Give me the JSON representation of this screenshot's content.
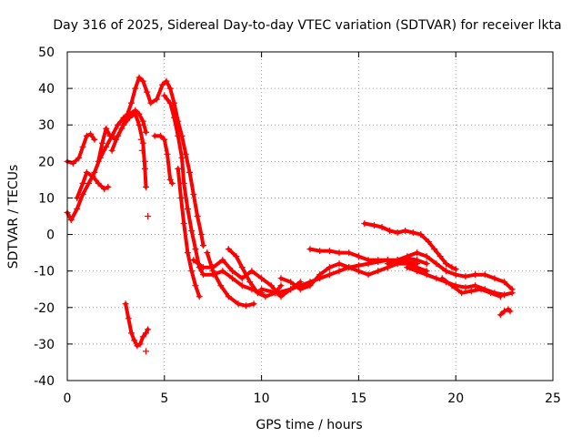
{
  "chart_data": {
    "type": "scatter",
    "title": "Day 316 of 2025, Sidereal Day-to-day VTEC variation (SDTVAR) for receiver lkta",
    "xlabel": "GPS time / hours",
    "ylabel": "SDTVAR / TECUs",
    "xlim": [
      0,
      25
    ],
    "ylim": [
      -40,
      50
    ],
    "xticks": [
      0,
      5,
      10,
      15,
      20,
      25
    ],
    "yticks": [
      -40,
      -30,
      -20,
      -10,
      0,
      10,
      20,
      30,
      40,
      50
    ],
    "grid": true,
    "marker": "+",
    "color": "#ff0000",
    "series": [
      {
        "name": "trace-1",
        "points": [
          [
            0.0,
            20
          ],
          [
            0.3,
            19.5
          ],
          [
            0.6,
            21
          ],
          [
            0.8,
            24
          ],
          [
            1.0,
            27
          ],
          [
            1.2,
            27.5
          ],
          [
            1.4,
            26
          ]
        ]
      },
      {
        "name": "trace-2",
        "points": [
          [
            0.0,
            6
          ],
          [
            0.2,
            4
          ],
          [
            0.5,
            7
          ],
          [
            0.8,
            11
          ],
          [
            1.1,
            14
          ],
          [
            1.4,
            17
          ],
          [
            1.7,
            21
          ],
          [
            2.0,
            24
          ],
          [
            2.3,
            27
          ],
          [
            2.6,
            30
          ],
          [
            2.9,
            32
          ],
          [
            3.2,
            33
          ],
          [
            3.5,
            34
          ],
          [
            3.7,
            33
          ],
          [
            3.9,
            31
          ],
          [
            4.05,
            28
          ]
        ]
      },
      {
        "name": "trace-3",
        "points": [
          [
            0.5,
            10
          ],
          [
            0.8,
            14
          ],
          [
            1.0,
            17
          ],
          [
            1.3,
            16
          ],
          [
            1.6,
            14
          ],
          [
            1.9,
            12.5
          ],
          [
            2.1,
            13
          ]
        ]
      },
      {
        "name": "trace-4",
        "points": [
          [
            1.6,
            20
          ],
          [
            1.8,
            25
          ],
          [
            2.0,
            29
          ],
          [
            2.2,
            27
          ],
          [
            2.5,
            26
          ],
          [
            2.8,
            29
          ],
          [
            3.1,
            33
          ],
          [
            3.3,
            36
          ],
          [
            3.5,
            40
          ],
          [
            3.7,
            43
          ],
          [
            3.9,
            42
          ],
          [
            4.1,
            39
          ],
          [
            4.3,
            36
          ],
          [
            4.6,
            37
          ],
          [
            4.9,
            41
          ],
          [
            5.1,
            42
          ],
          [
            5.3,
            40
          ],
          [
            5.5,
            36
          ],
          [
            5.7,
            31
          ],
          [
            5.9,
            27
          ],
          [
            6.1,
            22
          ],
          [
            6.3,
            17
          ],
          [
            6.5,
            11
          ],
          [
            6.7,
            5
          ],
          [
            6.9,
            0
          ],
          [
            7.0,
            -3
          ]
        ]
      },
      {
        "name": "trace-5",
        "points": [
          [
            2.3,
            23
          ],
          [
            2.6,
            27
          ],
          [
            2.9,
            30
          ],
          [
            3.2,
            32
          ],
          [
            3.5,
            33
          ],
          [
            3.7,
            30
          ],
          [
            3.9,
            25
          ],
          [
            4.0,
            18
          ],
          [
            4.05,
            13
          ]
        ]
      },
      {
        "name": "trace-6",
        "points": [
          [
            4.5,
            27
          ],
          [
            4.8,
            27
          ],
          [
            5.0,
            26
          ],
          [
            5.15,
            22
          ],
          [
            5.3,
            15
          ],
          [
            5.4,
            14
          ]
        ]
      },
      {
        "name": "trace-7",
        "points": [
          [
            5.0,
            38
          ],
          [
            5.3,
            36
          ],
          [
            5.5,
            32
          ],
          [
            5.7,
            27
          ],
          [
            5.9,
            21
          ],
          [
            6.0,
            14
          ],
          [
            6.2,
            7
          ],
          [
            6.4,
            1
          ],
          [
            6.6,
            -4
          ],
          [
            6.8,
            -9
          ],
          [
            7.0,
            -11
          ],
          [
            7.5,
            -11
          ],
          [
            8.0,
            -10
          ],
          [
            8.5,
            -12
          ],
          [
            9.0,
            -14
          ],
          [
            9.5,
            -15
          ],
          [
            10.0,
            -16
          ]
        ]
      },
      {
        "name": "trace-8",
        "points": [
          [
            5.7,
            18
          ],
          [
            5.85,
            10
          ],
          [
            6.0,
            3
          ],
          [
            6.2,
            -5
          ],
          [
            6.4,
            -10
          ],
          [
            6.6,
            -14
          ],
          [
            6.8,
            -17
          ]
        ]
      },
      {
        "name": "trace-9",
        "points": [
          [
            6.5,
            -7
          ],
          [
            7.0,
            -9
          ],
          [
            7.5,
            -9
          ],
          [
            8.0,
            -7
          ],
          [
            8.5,
            -10
          ],
          [
            9.0,
            -12
          ],
          [
            9.5,
            -10
          ],
          [
            10.0,
            -12
          ],
          [
            10.5,
            -14
          ],
          [
            11.0,
            -17
          ],
          [
            11.5,
            -15
          ],
          [
            12.0,
            -13
          ]
        ]
      },
      {
        "name": "trace-10",
        "points": [
          [
            7.2,
            -5
          ],
          [
            7.5,
            -10
          ],
          [
            7.9,
            -14
          ],
          [
            8.3,
            -17
          ],
          [
            8.8,
            -19
          ],
          [
            9.2,
            -19.5
          ],
          [
            9.6,
            -19
          ]
        ]
      },
      {
        "name": "trace-11",
        "points": [
          [
            8.3,
            -4
          ],
          [
            8.7,
            -6
          ],
          [
            9.0,
            -9
          ],
          [
            9.4,
            -13
          ],
          [
            9.8,
            -16
          ],
          [
            10.2,
            -17
          ],
          [
            10.7,
            -16
          ],
          [
            11.0,
            -14
          ]
        ]
      },
      {
        "name": "trace-12",
        "points": [
          [
            10.0,
            -15
          ],
          [
            10.8,
            -16
          ],
          [
            11.5,
            -15
          ],
          [
            12.0,
            -14
          ],
          [
            12.5,
            -13
          ],
          [
            13.0,
            -12
          ],
          [
            13.5,
            -11
          ],
          [
            14.0,
            -10
          ],
          [
            14.5,
            -9
          ],
          [
            15.0,
            -8.5
          ],
          [
            15.5,
            -8
          ],
          [
            16.0,
            -7.5
          ],
          [
            16.5,
            -7
          ],
          [
            17.0,
            -7
          ],
          [
            17.5,
            -6.5
          ],
          [
            18.0,
            -7
          ],
          [
            18.5,
            -8
          ]
        ]
      },
      {
        "name": "trace-13",
        "points": [
          [
            11.0,
            -12
          ],
          [
            11.5,
            -13
          ],
          [
            12.0,
            -15
          ],
          [
            12.5,
            -14
          ],
          [
            13.0,
            -11
          ],
          [
            13.5,
            -9
          ],
          [
            14.0,
            -8
          ],
          [
            14.5,
            -9
          ],
          [
            15.0,
            -10
          ],
          [
            15.5,
            -11
          ],
          [
            16.0,
            -10
          ],
          [
            16.5,
            -9
          ],
          [
            17.0,
            -8
          ],
          [
            17.5,
            -8
          ],
          [
            18.0,
            -9
          ],
          [
            18.5,
            -10
          ]
        ]
      },
      {
        "name": "trace-14",
        "points": [
          [
            12.5,
            -4
          ],
          [
            13.0,
            -4.5
          ],
          [
            13.5,
            -4.5
          ],
          [
            14.0,
            -5
          ],
          [
            14.5,
            -5
          ],
          [
            15.0,
            -6
          ],
          [
            15.5,
            -7
          ],
          [
            16.0,
            -7
          ],
          [
            16.5,
            -7
          ],
          [
            17.0,
            -7.5
          ],
          [
            17.5,
            -7.5
          ],
          [
            18.0,
            -8
          ]
        ]
      },
      {
        "name": "trace-15",
        "points": [
          [
            15.3,
            3
          ],
          [
            15.8,
            2.5
          ],
          [
            16.2,
            2
          ],
          [
            16.6,
            1
          ],
          [
            17.0,
            0.5
          ],
          [
            17.4,
            1
          ],
          [
            17.8,
            0.5
          ],
          [
            18.2,
            0
          ],
          [
            18.6,
            -2
          ],
          [
            18.9,
            -4
          ],
          [
            19.2,
            -6
          ],
          [
            19.5,
            -8
          ],
          [
            19.8,
            -9
          ],
          [
            20.0,
            -9.5
          ]
        ]
      },
      {
        "name": "trace-16",
        "points": [
          [
            16.5,
            -8
          ],
          [
            17.0,
            -7
          ],
          [
            17.5,
            -6
          ],
          [
            18.0,
            -5
          ],
          [
            18.5,
            -6
          ],
          [
            19.0,
            -8
          ],
          [
            19.5,
            -10
          ],
          [
            20.0,
            -11
          ],
          [
            20.5,
            -11.5
          ],
          [
            21.0,
            -11
          ],
          [
            21.5,
            -11
          ],
          [
            22.0,
            -12
          ],
          [
            22.5,
            -13
          ],
          [
            22.9,
            -15
          ]
        ]
      },
      {
        "name": "trace-17",
        "points": [
          [
            17.5,
            -9
          ],
          [
            18.0,
            -10
          ],
          [
            18.5,
            -11
          ],
          [
            19.0,
            -12
          ],
          [
            19.5,
            -13
          ],
          [
            20.0,
            -14
          ],
          [
            20.5,
            -14.5
          ],
          [
            21.0,
            -14
          ],
          [
            21.5,
            -15
          ],
          [
            22.0,
            -16
          ],
          [
            22.5,
            -16.5
          ],
          [
            22.9,
            -16
          ]
        ]
      },
      {
        "name": "trace-18",
        "points": [
          [
            19.3,
            -12
          ],
          [
            19.8,
            -14
          ],
          [
            20.3,
            -16
          ],
          [
            20.8,
            -15.5
          ],
          [
            21.3,
            -15
          ],
          [
            21.8,
            -16
          ],
          [
            22.3,
            -17
          ]
        ]
      },
      {
        "name": "trace-19",
        "points": [
          [
            22.3,
            -22
          ],
          [
            22.5,
            -21
          ],
          [
            22.7,
            -20.5
          ],
          [
            22.8,
            -21
          ]
        ]
      },
      {
        "name": "trace-20",
        "points": [
          [
            3.0,
            -19
          ],
          [
            3.15,
            -23
          ],
          [
            3.3,
            -27
          ],
          [
            3.45,
            -29
          ],
          [
            3.6,
            -30.5
          ],
          [
            3.75,
            -30
          ],
          [
            3.9,
            -28
          ],
          [
            4.05,
            -27
          ],
          [
            4.15,
            -26
          ]
        ]
      }
    ],
    "scatter_points": [
      [
        4.05,
        -32
      ],
      [
        4.15,
        5
      ],
      [
        3.8,
        26
      ],
      [
        3.85,
        23
      ],
      [
        4.0,
        20
      ]
    ]
  }
}
